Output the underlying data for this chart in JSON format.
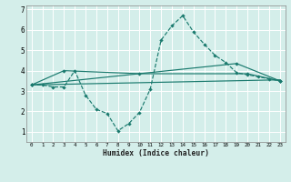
{
  "background_color": "#d4eeea",
  "grid_color": "#b8ddd8",
  "line_color": "#1a7a6e",
  "x_min": -0.5,
  "x_max": 23.5,
  "y_min": 0.5,
  "y_max": 7.2,
  "xlabel": "Humidex (Indice chaleur)",
  "xtick_labels": [
    "0",
    "1",
    "2",
    "3",
    "4",
    "5",
    "6",
    "7",
    "8",
    "9",
    "10",
    "11",
    "12",
    "13",
    "14",
    "15",
    "16",
    "17",
    "18",
    "19",
    "20",
    "21",
    "22",
    "23"
  ],
  "ytick_labels": [
    "1",
    "2",
    "3",
    "4",
    "5",
    "6",
    "7"
  ],
  "ytick_vals": [
    1,
    2,
    3,
    4,
    5,
    6,
    7
  ],
  "series1_x": [
    0,
    1,
    2,
    3,
    4,
    5,
    6,
    7,
    8,
    9,
    10,
    11,
    12,
    13,
    14,
    15,
    16,
    17,
    18,
    19,
    20,
    21,
    22,
    23
  ],
  "series1_y": [
    3.3,
    3.3,
    3.2,
    3.2,
    4.0,
    2.8,
    2.1,
    1.9,
    1.05,
    1.4,
    1.95,
    3.1,
    5.5,
    6.2,
    6.7,
    5.9,
    5.3,
    4.75,
    4.4,
    3.9,
    3.8,
    3.7,
    3.6,
    3.5
  ],
  "series2_x": [
    0,
    3,
    10,
    20,
    23
  ],
  "series2_y": [
    3.3,
    4.0,
    3.85,
    3.85,
    3.5
  ],
  "series3_x": [
    0,
    23
  ],
  "series3_y": [
    3.3,
    3.55
  ],
  "series4_x": [
    0,
    19,
    23
  ],
  "series4_y": [
    3.3,
    4.35,
    3.5
  ]
}
